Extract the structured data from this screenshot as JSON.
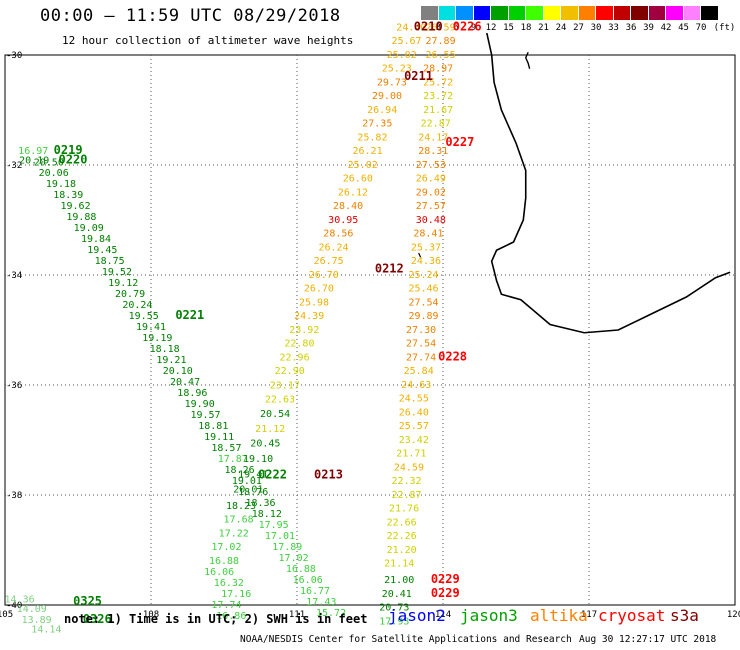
{
  "title": "00:00 – 11:59 UTC 08/29/2018",
  "subtitle": "12 hour collection of altimeter wave heights",
  "colorbar": {
    "labels": [
      "3",
      "6",
      "9",
      "12",
      "15",
      "18",
      "21",
      "24",
      "27",
      "30",
      "33",
      "36",
      "39",
      "42",
      "45",
      "70",
      "(ft)"
    ],
    "colors": [
      "#808080",
      "#00e0e0",
      "#0090ff",
      "#0000ff",
      "#00a000",
      "#00d000",
      "#40ff00",
      "#ffff00",
      "#f0c000",
      "#ff8000",
      "#ff0000",
      "#c00000",
      "#800000",
      "#a00040",
      "#ff00ff",
      "#ff80ff",
      "#000000"
    ]
  },
  "axes": {
    "lon_ticks": [
      "105",
      "108",
      "111",
      "114",
      "117",
      "120"
    ],
    "lat_ticks": [
      "-30",
      "-32",
      "-34",
      "-36",
      "-38",
      "-40"
    ]
  },
  "note": "note: 1) Time is in UTC; 2) SWH is in feet",
  "credit": "NOAA/NESDIS Center for Satellite Applications and Research",
  "timestamp": "Aug 30 12:27:17 UTC 2018",
  "legend": [
    {
      "name": "jason2",
      "color": "#0000ff"
    },
    {
      "name": "jason3",
      "color": "#00a000"
    },
    {
      "name": "altika",
      "color": "#ff8000"
    },
    {
      "name": "cryosat",
      "color": "#ff0000"
    },
    {
      "name": "s3a",
      "color": "#800000"
    }
  ],
  "tracks": [
    {
      "id": "track-jason3-west",
      "points": [
        {
          "lon": 105.58,
          "lat": -31.8,
          "v": "16.97",
          "c": "#40d040"
        },
        {
          "lon": 105.6,
          "lat": -31.97,
          "v": "20.19",
          "c": "#008000"
        },
        {
          "lon": 105.9,
          "lat": -32.01,
          "v": "20.50",
          "c": "#008000"
        },
        {
          "lon": 106.0,
          "lat": -32.2,
          "v": "20.06",
          "c": "#008000"
        },
        {
          "lon": 106.15,
          "lat": -32.4,
          "v": "19.18",
          "c": "#008000"
        },
        {
          "lon": 106.3,
          "lat": -32.6,
          "v": "18.39",
          "c": "#008000"
        },
        {
          "lon": 106.45,
          "lat": -32.8,
          "v": "19.62",
          "c": "#008000"
        },
        {
          "lon": 106.57,
          "lat": -33.0,
          "v": "19.88",
          "c": "#008000"
        },
        {
          "lon": 106.72,
          "lat": -33.2,
          "v": "19.09",
          "c": "#008000"
        },
        {
          "lon": 106.87,
          "lat": -33.4,
          "v": "19.84",
          "c": "#008000"
        },
        {
          "lon": 107.0,
          "lat": -33.6,
          "v": "19.45",
          "c": "#008000"
        },
        {
          "lon": 107.15,
          "lat": -33.8,
          "v": "18.75",
          "c": "#008000"
        },
        {
          "lon": 107.3,
          "lat": -34.0,
          "v": "19.52",
          "c": "#008000"
        },
        {
          "lon": 107.43,
          "lat": -34.2,
          "v": "19.12",
          "c": "#008000"
        },
        {
          "lon": 107.57,
          "lat": -34.4,
          "v": "20.79",
          "c": "#008000"
        },
        {
          "lon": 107.72,
          "lat": -34.6,
          "v": "20.24",
          "c": "#008000"
        },
        {
          "lon": 107.85,
          "lat": -34.8,
          "v": "19.55",
          "c": "#008000"
        },
        {
          "lon": 108.0,
          "lat": -35.0,
          "v": "19.41",
          "c": "#008000"
        },
        {
          "lon": 108.13,
          "lat": -35.2,
          "v": "19.19",
          "c": "#008000"
        },
        {
          "lon": 108.28,
          "lat": -35.4,
          "v": "18.18",
          "c": "#008000"
        },
        {
          "lon": 108.42,
          "lat": -35.6,
          "v": "19.21",
          "c": "#008000"
        },
        {
          "lon": 108.55,
          "lat": -35.8,
          "v": "20.10",
          "c": "#008000"
        },
        {
          "lon": 108.7,
          "lat": -36.0,
          "v": "20.47",
          "c": "#008000"
        },
        {
          "lon": 108.85,
          "lat": -36.2,
          "v": "18.96",
          "c": "#008000"
        },
        {
          "lon": 109.0,
          "lat": -36.4,
          "v": "19.90",
          "c": "#008000"
        },
        {
          "lon": 109.12,
          "lat": -36.6,
          "v": "19.57",
          "c": "#008000"
        },
        {
          "lon": 109.28,
          "lat": -36.8,
          "v": "18.81",
          "c": "#008000"
        },
        {
          "lon": 109.4,
          "lat": -37.0,
          "v": "19.11",
          "c": "#008000"
        },
        {
          "lon": 109.55,
          "lat": -37.2,
          "v": "18.57",
          "c": "#008000"
        },
        {
          "lon": 109.68,
          "lat": -37.4,
          "v": "17.87",
          "c": "#40d040"
        },
        {
          "lon": 109.82,
          "lat": -37.6,
          "v": "18.26",
          "c": "#008000"
        },
        {
          "lon": 109.97,
          "lat": -37.8,
          "v": "19.01",
          "c": "#008000"
        },
        {
          "lon": 110.1,
          "lat": -38.0,
          "v": "18.76",
          "c": "#008000"
        },
        {
          "lon": 110.25,
          "lat": -38.2,
          "v": "18.36",
          "c": "#008000"
        },
        {
          "lon": 110.38,
          "lat": -38.4,
          "v": "18.12",
          "c": "#008000"
        },
        {
          "lon": 110.52,
          "lat": -38.6,
          "v": "17.95",
          "c": "#40d040"
        },
        {
          "lon": 110.65,
          "lat": -38.8,
          "v": "17.01",
          "c": "#40d040"
        },
        {
          "lon": 110.8,
          "lat": -39.0,
          "v": "17.89",
          "c": "#40d040"
        },
        {
          "lon": 110.93,
          "lat": -39.2,
          "v": "17.02",
          "c": "#40d040"
        },
        {
          "lon": 111.08,
          "lat": -39.4,
          "v": "16.88",
          "c": "#40d040"
        },
        {
          "lon": 111.22,
          "lat": -39.6,
          "v": "16.06",
          "c": "#40d040"
        },
        {
          "lon": 111.37,
          "lat": -39.8,
          "v": "16.77",
          "c": "#40d040"
        },
        {
          "lon": 111.5,
          "lat": -40.0,
          "v": "17.43",
          "c": "#40d040"
        },
        {
          "lon": 111.7,
          "lat": -40.2,
          "v": "15.72",
          "c": "#40d040"
        }
      ]
    },
    {
      "id": "track-jason3-east",
      "points": [
        {
          "lon": 109.65,
          "lat": -40.25,
          "v": "16.86",
          "c": "#40d040"
        },
        {
          "lon": 109.55,
          "lat": -40.05,
          "v": "17.74",
          "c": "#40d040"
        },
        {
          "lon": 109.75,
          "lat": -39.85,
          "v": "17.16",
          "c": "#40d040"
        },
        {
          "lon": 109.6,
          "lat": -39.65,
          "v": "16.32",
          "c": "#40d040"
        },
        {
          "lon": 109.4,
          "lat": -39.45,
          "v": "16.06",
          "c": "#40d040"
        },
        {
          "lon": 109.5,
          "lat": -39.25,
          "v": "16.88",
          "c": "#40d040"
        },
        {
          "lon": 109.55,
          "lat": -39.0,
          "v": "17.02",
          "c": "#40d040"
        },
        {
          "lon": 109.7,
          "lat": -38.75,
          "v": "17.22",
          "c": "#40d040"
        },
        {
          "lon": 109.8,
          "lat": -38.5,
          "v": "17.68",
          "c": "#40d040"
        },
        {
          "lon": 109.85,
          "lat": -38.25,
          "v": "18.23",
          "c": "#008000"
        },
        {
          "lon": 110.0,
          "lat": -37.95,
          "v": "20.01",
          "c": "#008000"
        },
        {
          "lon": 110.1,
          "lat": -37.68,
          "v": "19.41",
          "c": "#008000"
        },
        {
          "lon": 110.2,
          "lat": -37.4,
          "v": "19.10",
          "c": "#008000"
        },
        {
          "lon": 110.35,
          "lat": -37.12,
          "v": "20.45",
          "c": "#008000"
        },
        {
          "lon": 110.45,
          "lat": -36.85,
          "v": "21.12",
          "c": "#d0d000"
        },
        {
          "lon": 110.55,
          "lat": -36.58,
          "v": "20.54",
          "c": "#008000"
        },
        {
          "lon": 110.65,
          "lat": -36.32,
          "v": "22.63",
          "c": "#d0d000"
        },
        {
          "lon": 110.75,
          "lat": -36.06,
          "v": "23.17",
          "c": "#d0d000"
        },
        {
          "lon": 110.85,
          "lat": -35.8,
          "v": "22.90",
          "c": "#d0d000"
        },
        {
          "lon": 110.95,
          "lat": -35.55,
          "v": "22.96",
          "c": "#d0d000"
        },
        {
          "lon": 111.05,
          "lat": -35.3,
          "v": "22.80",
          "c": "#d0d000"
        },
        {
          "lon": 111.15,
          "lat": -35.05,
          "v": "23.92",
          "c": "#d0d000"
        },
        {
          "lon": 111.25,
          "lat": -34.8,
          "v": "24.39",
          "c": "#f0b000"
        },
        {
          "lon": 111.35,
          "lat": -34.55,
          "v": "25.98",
          "c": "#f0b000"
        },
        {
          "lon": 111.45,
          "lat": -34.3,
          "v": "26.70",
          "c": "#f0b000"
        },
        {
          "lon": 111.55,
          "lat": -34.05,
          "v": "26.70",
          "c": "#f0b000"
        },
        {
          "lon": 111.65,
          "lat": -33.8,
          "v": "26.75",
          "c": "#f0b000"
        },
        {
          "lon": 111.75,
          "lat": -33.55,
          "v": "26.24",
          "c": "#f0b000"
        },
        {
          "lon": 111.85,
          "lat": -33.3,
          "v": "28.56",
          "c": "#f08000"
        },
        {
          "lon": 111.95,
          "lat": -33.05,
          "v": "30.95",
          "c": "#e00000"
        },
        {
          "lon": 112.05,
          "lat": -32.8,
          "v": "28.40",
          "c": "#f08000"
        },
        {
          "lon": 112.15,
          "lat": -32.55,
          "v": "26.12",
          "c": "#f0b000"
        },
        {
          "lon": 112.25,
          "lat": -32.3,
          "v": "26.60",
          "c": "#f0b000"
        },
        {
          "lon": 112.35,
          "lat": -32.05,
          "v": "25.02",
          "c": "#f0b000"
        },
        {
          "lon": 112.45,
          "lat": -31.8,
          "v": "26.21",
          "c": "#f0b000"
        },
        {
          "lon": 112.55,
          "lat": -31.55,
          "v": "25.82",
          "c": "#f0b000"
        },
        {
          "lon": 112.65,
          "lat": -31.3,
          "v": "27.35",
          "c": "#f08000"
        },
        {
          "lon": 112.75,
          "lat": -31.05,
          "v": "26.94",
          "c": "#f0b000"
        },
        {
          "lon": 112.85,
          "lat": -30.8,
          "v": "29.00",
          "c": "#f08000"
        },
        {
          "lon": 112.95,
          "lat": -30.55,
          "v": "29.73",
          "c": "#f08000"
        },
        {
          "lon": 113.05,
          "lat": -30.3,
          "v": "25.23",
          "c": "#f0b000"
        },
        {
          "lon": 113.15,
          "lat": -30.05,
          "v": "25.02",
          "c": "#f0b000"
        },
        {
          "lon": 113.25,
          "lat": -29.8,
          "v": "25.67",
          "c": "#f0b000"
        },
        {
          "lon": 113.35,
          "lat": -29.55,
          "v": "24.40",
          "c": "#f0b000"
        }
      ]
    },
    {
      "id": "track-altika-east",
      "points": [
        {
          "lon": 113.95,
          "lat": -29.55,
          "v": "26.59",
          "c": "#f0b000"
        },
        {
          "lon": 113.95,
          "lat": -29.8,
          "v": "27.89",
          "c": "#f08000"
        },
        {
          "lon": 113.95,
          "lat": -30.05,
          "v": "26.55",
          "c": "#f0b000"
        },
        {
          "lon": 113.9,
          "lat": -30.3,
          "v": "28.97",
          "c": "#f08000"
        },
        {
          "lon": 113.9,
          "lat": -30.55,
          "v": "25.72",
          "c": "#f0b000"
        },
        {
          "lon": 113.9,
          "lat": -30.8,
          "v": "23.72",
          "c": "#d0d000"
        },
        {
          "lon": 113.9,
          "lat": -31.05,
          "v": "21.67",
          "c": "#d0d000"
        },
        {
          "lon": 113.85,
          "lat": -31.3,
          "v": "22.87",
          "c": "#d0d000"
        },
        {
          "lon": 113.8,
          "lat": -31.55,
          "v": "24.17",
          "c": "#f0b000"
        },
        {
          "lon": 113.8,
          "lat": -31.8,
          "v": "28.31",
          "c": "#f08000"
        },
        {
          "lon": 113.75,
          "lat": -32.05,
          "v": "27.53",
          "c": "#f08000"
        },
        {
          "lon": 113.75,
          "lat": -32.3,
          "v": "26.49",
          "c": "#f0b000"
        },
        {
          "lon": 113.75,
          "lat": -32.55,
          "v": "29.02",
          "c": "#f08000"
        },
        {
          "lon": 113.75,
          "lat": -32.8,
          "v": "27.57",
          "c": "#f08000"
        },
        {
          "lon": 113.75,
          "lat": -33.05,
          "v": "30.48",
          "c": "#e00000"
        },
        {
          "lon": 113.7,
          "lat": -33.3,
          "v": "28.41",
          "c": "#f08000"
        },
        {
          "lon": 113.65,
          "lat": -33.55,
          "v": "25.37",
          "c": "#f0b000"
        },
        {
          "lon": 113.65,
          "lat": -33.8,
          "v": "24.36",
          "c": "#f0b000"
        },
        {
          "lon": 113.6,
          "lat": -34.05,
          "v": "25.24",
          "c": "#f0b000"
        },
        {
          "lon": 113.6,
          "lat": -34.3,
          "v": "25.46",
          "c": "#f0b000"
        },
        {
          "lon": 113.6,
          "lat": -34.55,
          "v": "27.54",
          "c": "#f08000"
        },
        {
          "lon": 113.6,
          "lat": -34.8,
          "v": "29.89",
          "c": "#f08000"
        },
        {
          "lon": 113.55,
          "lat": -35.05,
          "v": "27.30",
          "c": "#f08000"
        },
        {
          "lon": 113.55,
          "lat": -35.3,
          "v": "27.54",
          "c": "#f08000"
        },
        {
          "lon": 113.55,
          "lat": -35.55,
          "v": "27.74",
          "c": "#f08000"
        },
        {
          "lon": 113.5,
          "lat": -35.8,
          "v": "25.84",
          "c": "#f0b000"
        },
        {
          "lon": 113.45,
          "lat": -36.05,
          "v": "24.63",
          "c": "#f0b000"
        },
        {
          "lon": 113.4,
          "lat": -36.3,
          "v": "24.55",
          "c": "#f0b000"
        },
        {
          "lon": 113.4,
          "lat": -36.55,
          "v": "26.40",
          "c": "#f0b000"
        },
        {
          "lon": 113.4,
          "lat": -36.8,
          "v": "25.57",
          "c": "#f0b000"
        },
        {
          "lon": 113.4,
          "lat": -37.05,
          "v": "23.42",
          "c": "#d0d000"
        },
        {
          "lon": 113.35,
          "lat": -37.3,
          "v": "21.71",
          "c": "#d0d000"
        },
        {
          "lon": 113.3,
          "lat": -37.55,
          "v": "24.59",
          "c": "#f0b000"
        },
        {
          "lon": 113.25,
          "lat": -37.8,
          "v": "22.32",
          "c": "#d0d000"
        },
        {
          "lon": 113.25,
          "lat": -38.05,
          "v": "22.87",
          "c": "#d0d000"
        },
        {
          "lon": 113.2,
          "lat": -38.3,
          "v": "21.76",
          "c": "#d0d000"
        },
        {
          "lon": 113.15,
          "lat": -38.55,
          "v": "22.66",
          "c": "#d0d000"
        },
        {
          "lon": 113.15,
          "lat": -38.8,
          "v": "22.26",
          "c": "#d0d000"
        },
        {
          "lon": 113.15,
          "lat": -39.05,
          "v": "21.20",
          "c": "#d0d000"
        },
        {
          "lon": 113.1,
          "lat": -39.3,
          "v": "21.14",
          "c": "#d0d000"
        },
        {
          "lon": 113.1,
          "lat": -39.6,
          "v": "21.00",
          "c": "#008000"
        },
        {
          "lon": 113.05,
          "lat": -39.85,
          "v": "20.41",
          "c": "#008000"
        },
        {
          "lon": 113.0,
          "lat": -40.1,
          "v": "20.73",
          "c": "#008000"
        },
        {
          "lon": 113.0,
          "lat": -40.35,
          "v": "17.93",
          "c": "#40d040"
        }
      ]
    },
    {
      "id": "track-sw-corner",
      "points": [
        {
          "lon": 105.3,
          "lat": -39.95,
          "v": "14.36",
          "c": "#80d080"
        },
        {
          "lon": 105.55,
          "lat": -40.13,
          "v": "14.09",
          "c": "#80d080"
        },
        {
          "lon": 105.65,
          "lat": -40.33,
          "v": "13.89",
          "c": "#80d080"
        },
        {
          "lon": 105.85,
          "lat": -40.5,
          "v": "14.14",
          "c": "#80d080"
        }
      ]
    }
  ],
  "time_labels": [
    {
      "lon": 106.0,
      "lat": -31.8,
      "v": "0219",
      "c": "#008000"
    },
    {
      "lon": 106.1,
      "lat": -31.97,
      "v": "0220",
      "c": "#008000"
    },
    {
      "lon": 108.5,
      "lat": -34.8,
      "v": "0221",
      "c": "#008000"
    },
    {
      "lon": 110.2,
      "lat": -37.7,
      "v": "0222",
      "c": "#008000"
    },
    {
      "lon": 111.35,
      "lat": -37.7,
      "v": "0213",
      "c": "#800000"
    },
    {
      "lon": 112.6,
      "lat": -33.95,
      "v": "0212",
      "c": "#800000"
    },
    {
      "lon": 113.2,
      "lat": -30.45,
      "v": "0211",
      "c": "#800000"
    },
    {
      "lon": 113.4,
      "lat": -29.55,
      "v": "0210",
      "c": "#800000"
    },
    {
      "lon": 114.2,
      "lat": -29.55,
      "v": "0226",
      "c": "#ff0000"
    },
    {
      "lon": 114.05,
      "lat": -31.65,
      "v": "0227",
      "c": "#ff0000"
    },
    {
      "lon": 113.9,
      "lat": -35.55,
      "v": "0228",
      "c": "#ff0000"
    },
    {
      "lon": 113.75,
      "lat": -39.6,
      "v": "0229",
      "c": "#ff0000"
    },
    {
      "lon": 113.75,
      "lat": -39.85,
      "v": "0229",
      "c": "#ff0000"
    },
    {
      "lon": 106.4,
      "lat": -40.0,
      "v": "0325",
      "c": "#008000"
    },
    {
      "lon": 106.6,
      "lat": -40.33,
      "v": "0326",
      "c": "#008000"
    }
  ]
}
